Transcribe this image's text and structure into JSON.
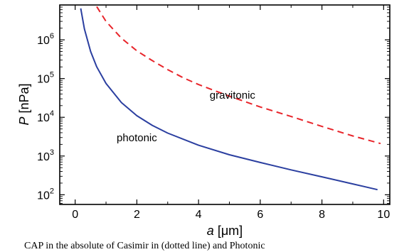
{
  "chart_data": {
    "type": "line",
    "xlabel": "a [μm]",
    "ylabel": "P [nPa]",
    "xlim": [
      -0.5,
      10.2
    ],
    "ylim_log10": [
      1.75,
      6.9
    ],
    "y_scale": "log",
    "grid": false,
    "x_ticks": [
      0,
      2,
      4,
      6,
      8,
      10
    ],
    "y_ticks": [
      {
        "base": "10",
        "exp": "2",
        "value": 100
      },
      {
        "base": "10",
        "exp": "3",
        "value": 1000
      },
      {
        "base": "10",
        "exp": "4",
        "value": 10000
      },
      {
        "base": "10",
        "exp": "5",
        "value": 100000
      },
      {
        "base": "10",
        "exp": "6",
        "value": 1000000
      }
    ],
    "series": [
      {
        "name": "photonic",
        "color": "#2b3fa0",
        "style": "solid",
        "points": [
          [
            0.18,
            6500000
          ],
          [
            0.3,
            1900000
          ],
          [
            0.5,
            500000
          ],
          [
            0.7,
            200000
          ],
          [
            1.0,
            75000
          ],
          [
            1.5,
            24000
          ],
          [
            2.0,
            11000
          ],
          [
            2.5,
            6200
          ],
          [
            3.0,
            3900
          ],
          [
            4.0,
            1900
          ],
          [
            5.0,
            1080
          ],
          [
            6.0,
            680
          ],
          [
            7.0,
            440
          ],
          [
            8.0,
            290
          ],
          [
            9.0,
            190
          ],
          [
            9.8,
            135
          ]
        ]
      },
      {
        "name": "gravitonic",
        "color": "#e8252b",
        "style": "dashed",
        "points": [
          [
            0.7,
            7200000
          ],
          [
            1.0,
            3000000
          ],
          [
            1.5,
            1100000
          ],
          [
            2.0,
            520000
          ],
          [
            2.5,
            290000
          ],
          [
            3.0,
            170000
          ],
          [
            3.5,
            105000
          ],
          [
            4.0,
            70000
          ],
          [
            5.0,
            35000
          ],
          [
            6.0,
            18500
          ],
          [
            7.0,
            10500
          ],
          [
            8.0,
            5800
          ],
          [
            9.0,
            3300
          ],
          [
            9.9,
            2100
          ]
        ]
      }
    ],
    "annotations": [
      {
        "text": "gravitonic",
        "x": 5.1,
        "y_log10": 4.48
      },
      {
        "text": "photonic",
        "x": 2.0,
        "y_log10": 3.38
      }
    ]
  },
  "caption": "CAP in the absolute of Casimir in (dotted line) and Photonic"
}
